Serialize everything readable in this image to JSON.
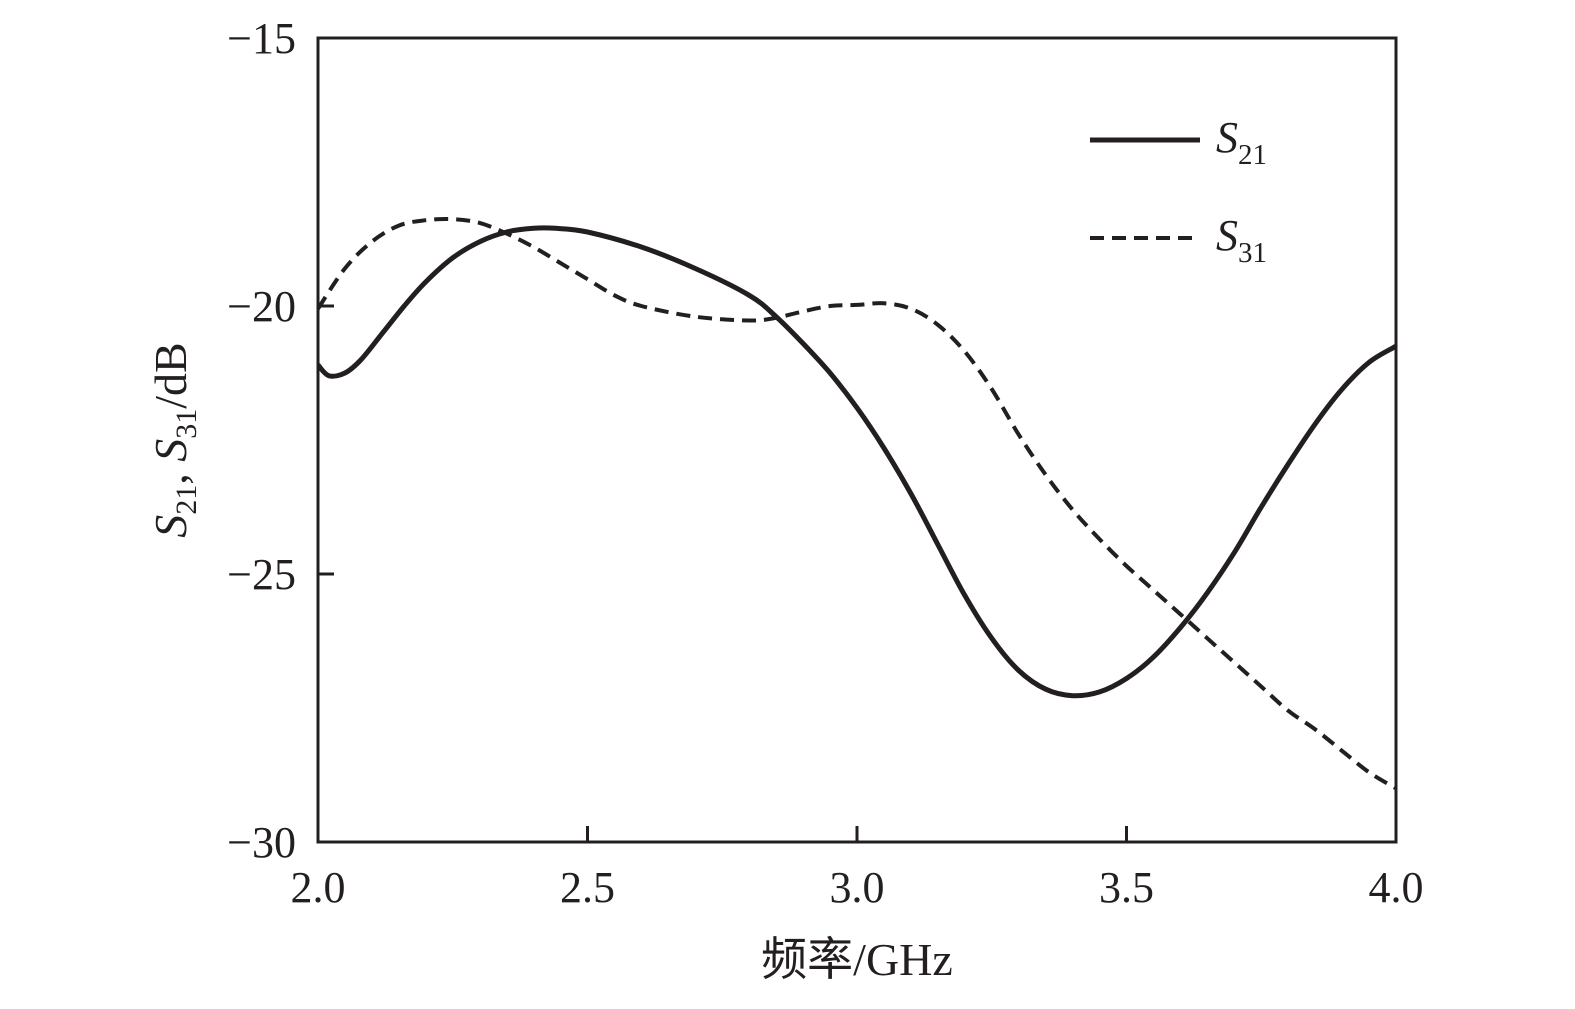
{
  "chart_data": {
    "type": "line",
    "title": "",
    "xlabel": "频率/GHz",
    "ylabel": {
      "a_main": "S",
      "a_sub": "21",
      "sep": ", ",
      "b_main": "S",
      "b_sub": "31",
      "unit": "/dB"
    },
    "xlim": [
      2.0,
      4.0
    ],
    "ylim": [
      -30,
      -15
    ],
    "x_ticks": [
      "2.0",
      "2.5",
      "3.0",
      "3.5",
      "4.0"
    ],
    "y_ticks": [
      "−15",
      "−20",
      "−25",
      "−30"
    ],
    "grid": false,
    "legend_position": "top-right",
    "series": [
      {
        "name": "S21",
        "label_main": "S",
        "label_sub": "21",
        "style": "solid",
        "color": "#231f20",
        "x": [
          2.0,
          2.02,
          2.05,
          2.08,
          2.12,
          2.16,
          2.2,
          2.25,
          2.3,
          2.35,
          2.4,
          2.44,
          2.5,
          2.6,
          2.7,
          2.8,
          2.85,
          2.9,
          2.95,
          3.0,
          3.05,
          3.1,
          3.15,
          3.2,
          3.25,
          3.3,
          3.35,
          3.4,
          3.45,
          3.5,
          3.55,
          3.6,
          3.65,
          3.7,
          3.75,
          3.8,
          3.85,
          3.9,
          3.95,
          4.0
        ],
        "y": [
          -21.1,
          -21.3,
          -21.25,
          -21.0,
          -20.5,
          -20.0,
          -19.55,
          -19.1,
          -18.8,
          -18.62,
          -18.55,
          -18.55,
          -18.62,
          -18.9,
          -19.3,
          -19.8,
          -20.2,
          -20.7,
          -21.25,
          -21.9,
          -22.65,
          -23.5,
          -24.45,
          -25.4,
          -26.2,
          -26.8,
          -27.15,
          -27.27,
          -27.2,
          -26.95,
          -26.55,
          -26.0,
          -25.35,
          -24.6,
          -23.75,
          -22.95,
          -22.2,
          -21.55,
          -21.05,
          -20.75
        ]
      },
      {
        "name": "S31",
        "label_main": "S",
        "label_sub": "31",
        "style": "dashed",
        "color": "#231f20",
        "x": [
          2.0,
          2.05,
          2.1,
          2.15,
          2.2,
          2.25,
          2.3,
          2.35,
          2.4,
          2.45,
          2.5,
          2.55,
          2.6,
          2.7,
          2.8,
          2.85,
          2.9,
          2.95,
          3.0,
          3.05,
          3.1,
          3.15,
          3.2,
          3.25,
          3.3,
          3.35,
          3.4,
          3.45,
          3.5,
          3.55,
          3.6,
          3.65,
          3.7,
          3.75,
          3.8,
          3.85,
          3.9,
          3.95,
          4.0
        ],
        "y": [
          -20.05,
          -19.3,
          -18.8,
          -18.5,
          -18.4,
          -18.38,
          -18.45,
          -18.65,
          -18.9,
          -19.2,
          -19.5,
          -19.8,
          -20.0,
          -20.2,
          -20.27,
          -20.22,
          -20.1,
          -20.0,
          -19.98,
          -19.95,
          -20.05,
          -20.35,
          -20.85,
          -21.55,
          -22.4,
          -23.15,
          -23.8,
          -24.35,
          -24.85,
          -25.3,
          -25.75,
          -26.2,
          -26.65,
          -27.1,
          -27.55,
          -27.9,
          -28.3,
          -28.7,
          -29.0
        ]
      }
    ]
  }
}
